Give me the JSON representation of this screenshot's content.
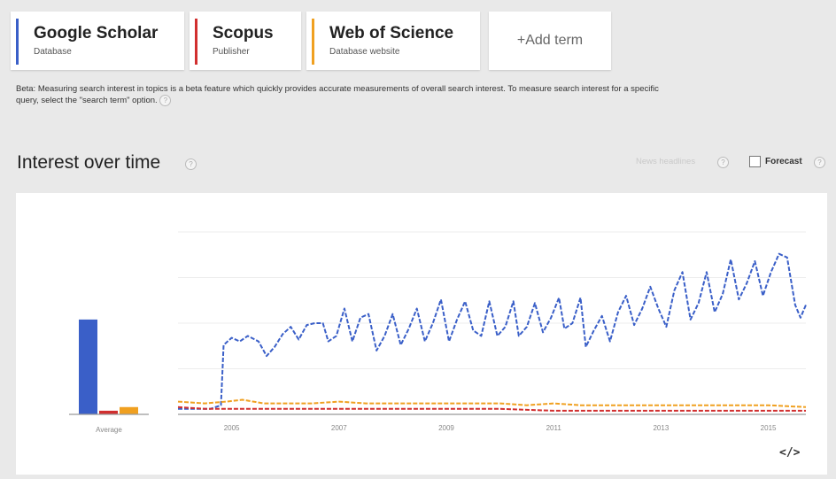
{
  "terms": [
    {
      "title": "Google Scholar",
      "subtitle": "Database",
      "color": "#3a5fc8"
    },
    {
      "title": "Scopus",
      "subtitle": "Publisher",
      "color": "#d12f2f"
    },
    {
      "title": "Web of Science",
      "subtitle": "Database website",
      "color": "#f0a020"
    }
  ],
  "add_term_label": "+Add term",
  "beta_notice": "Beta: Measuring search interest in topics is a beta feature which quickly provides accurate measurements of overall search interest. To measure search interest for a specific query, select the \"search term\" option.",
  "help_glyph": "?",
  "section_title": "Interest over time",
  "news_headlines_label": "News headlines",
  "forecast_label": "Forecast",
  "embed_glyph": "</>",
  "chart_data": {
    "type": "line",
    "title": "Interest over time",
    "average_bars": {
      "label": "Average",
      "values": [
        {
          "name": "Google Scholar",
          "value": 52,
          "color": "#3a5fc8"
        },
        {
          "name": "Scopus",
          "value": 2,
          "color": "#d12f2f"
        },
        {
          "name": "Web of Science",
          "value": 4,
          "color": "#f0a020"
        }
      ]
    },
    "x_tick_labels": [
      "2005",
      "2007",
      "2009",
      "2011",
      "2013",
      "2015"
    ],
    "x_range": [
      2004.0,
      2015.7
    ],
    "y_range": [
      0,
      100
    ],
    "grid": true,
    "series": [
      {
        "name": "Google Scholar",
        "color": "#3a5fc8",
        "style": "dashed",
        "points": [
          [
            2004.0,
            3
          ],
          [
            2004.3,
            3
          ],
          [
            2004.6,
            3
          ],
          [
            2004.8,
            5
          ],
          [
            2004.85,
            38
          ],
          [
            2005.0,
            42
          ],
          [
            2005.15,
            40
          ],
          [
            2005.3,
            43
          ],
          [
            2005.5,
            40
          ],
          [
            2005.65,
            32
          ],
          [
            2005.8,
            37
          ],
          [
            2005.95,
            44
          ],
          [
            2006.1,
            48
          ],
          [
            2006.25,
            41
          ],
          [
            2006.4,
            49
          ],
          [
            2006.55,
            50
          ],
          [
            2006.7,
            50
          ],
          [
            2006.8,
            40
          ],
          [
            2006.95,
            43
          ],
          [
            2007.1,
            58
          ],
          [
            2007.25,
            40
          ],
          [
            2007.4,
            53
          ],
          [
            2007.55,
            55
          ],
          [
            2007.7,
            35
          ],
          [
            2007.85,
            43
          ],
          [
            2008.0,
            55
          ],
          [
            2008.15,
            38
          ],
          [
            2008.3,
            47
          ],
          [
            2008.45,
            58
          ],
          [
            2008.6,
            40
          ],
          [
            2008.75,
            50
          ],
          [
            2008.9,
            63
          ],
          [
            2009.05,
            40
          ],
          [
            2009.2,
            52
          ],
          [
            2009.35,
            62
          ],
          [
            2009.5,
            46
          ],
          [
            2009.65,
            43
          ],
          [
            2009.8,
            62
          ],
          [
            2009.95,
            43
          ],
          [
            2010.1,
            48
          ],
          [
            2010.25,
            62
          ],
          [
            2010.35,
            43
          ],
          [
            2010.5,
            48
          ],
          [
            2010.65,
            61
          ],
          [
            2010.8,
            45
          ],
          [
            2010.95,
            53
          ],
          [
            2011.1,
            64
          ],
          [
            2011.2,
            47
          ],
          [
            2011.35,
            50
          ],
          [
            2011.5,
            64
          ],
          [
            2011.6,
            37
          ],
          [
            2011.75,
            46
          ],
          [
            2011.9,
            54
          ],
          [
            2012.05,
            40
          ],
          [
            2012.2,
            56
          ],
          [
            2012.35,
            65
          ],
          [
            2012.5,
            49
          ],
          [
            2012.65,
            58
          ],
          [
            2012.8,
            70
          ],
          [
            2012.95,
            58
          ],
          [
            2013.1,
            48
          ],
          [
            2013.25,
            68
          ],
          [
            2013.4,
            78
          ],
          [
            2013.55,
            52
          ],
          [
            2013.7,
            61
          ],
          [
            2013.85,
            78
          ],
          [
            2014.0,
            56
          ],
          [
            2014.15,
            66
          ],
          [
            2014.3,
            85
          ],
          [
            2014.45,
            63
          ],
          [
            2014.6,
            72
          ],
          [
            2014.75,
            84
          ],
          [
            2014.9,
            65
          ],
          [
            2015.05,
            78
          ],
          [
            2015.2,
            88
          ],
          [
            2015.35,
            86
          ],
          [
            2015.5,
            60
          ],
          [
            2015.6,
            53
          ],
          [
            2015.7,
            60
          ]
        ]
      },
      {
        "name": "Web of Science",
        "color": "#f0a020",
        "style": "dashed",
        "points": [
          [
            2004.0,
            7
          ],
          [
            2004.5,
            6
          ],
          [
            2004.9,
            7
          ],
          [
            2005.2,
            8
          ],
          [
            2005.6,
            6
          ],
          [
            2006.0,
            6
          ],
          [
            2006.5,
            6
          ],
          [
            2007.0,
            7
          ],
          [
            2007.5,
            6
          ],
          [
            2008.0,
            6
          ],
          [
            2008.5,
            6
          ],
          [
            2009.0,
            6
          ],
          [
            2009.5,
            6
          ],
          [
            2010.0,
            6
          ],
          [
            2010.5,
            5
          ],
          [
            2011.0,
            6
          ],
          [
            2011.5,
            5
          ],
          [
            2012.0,
            5
          ],
          [
            2012.5,
            5
          ],
          [
            2013.0,
            5
          ],
          [
            2013.5,
            5
          ],
          [
            2014.0,
            5
          ],
          [
            2014.5,
            5
          ],
          [
            2015.0,
            5
          ],
          [
            2015.7,
            4
          ]
        ]
      },
      {
        "name": "Scopus",
        "color": "#d12f2f",
        "style": "dashed",
        "points": [
          [
            2004.0,
            4
          ],
          [
            2004.5,
            3
          ],
          [
            2005.0,
            3
          ],
          [
            2005.5,
            3
          ],
          [
            2006.0,
            3
          ],
          [
            2007.0,
            3
          ],
          [
            2008.0,
            3
          ],
          [
            2009.0,
            3
          ],
          [
            2010.0,
            3
          ],
          [
            2011.0,
            2
          ],
          [
            2012.0,
            2
          ],
          [
            2013.0,
            2
          ],
          [
            2014.0,
            2
          ],
          [
            2015.0,
            2
          ],
          [
            2015.7,
            2
          ]
        ]
      }
    ]
  }
}
